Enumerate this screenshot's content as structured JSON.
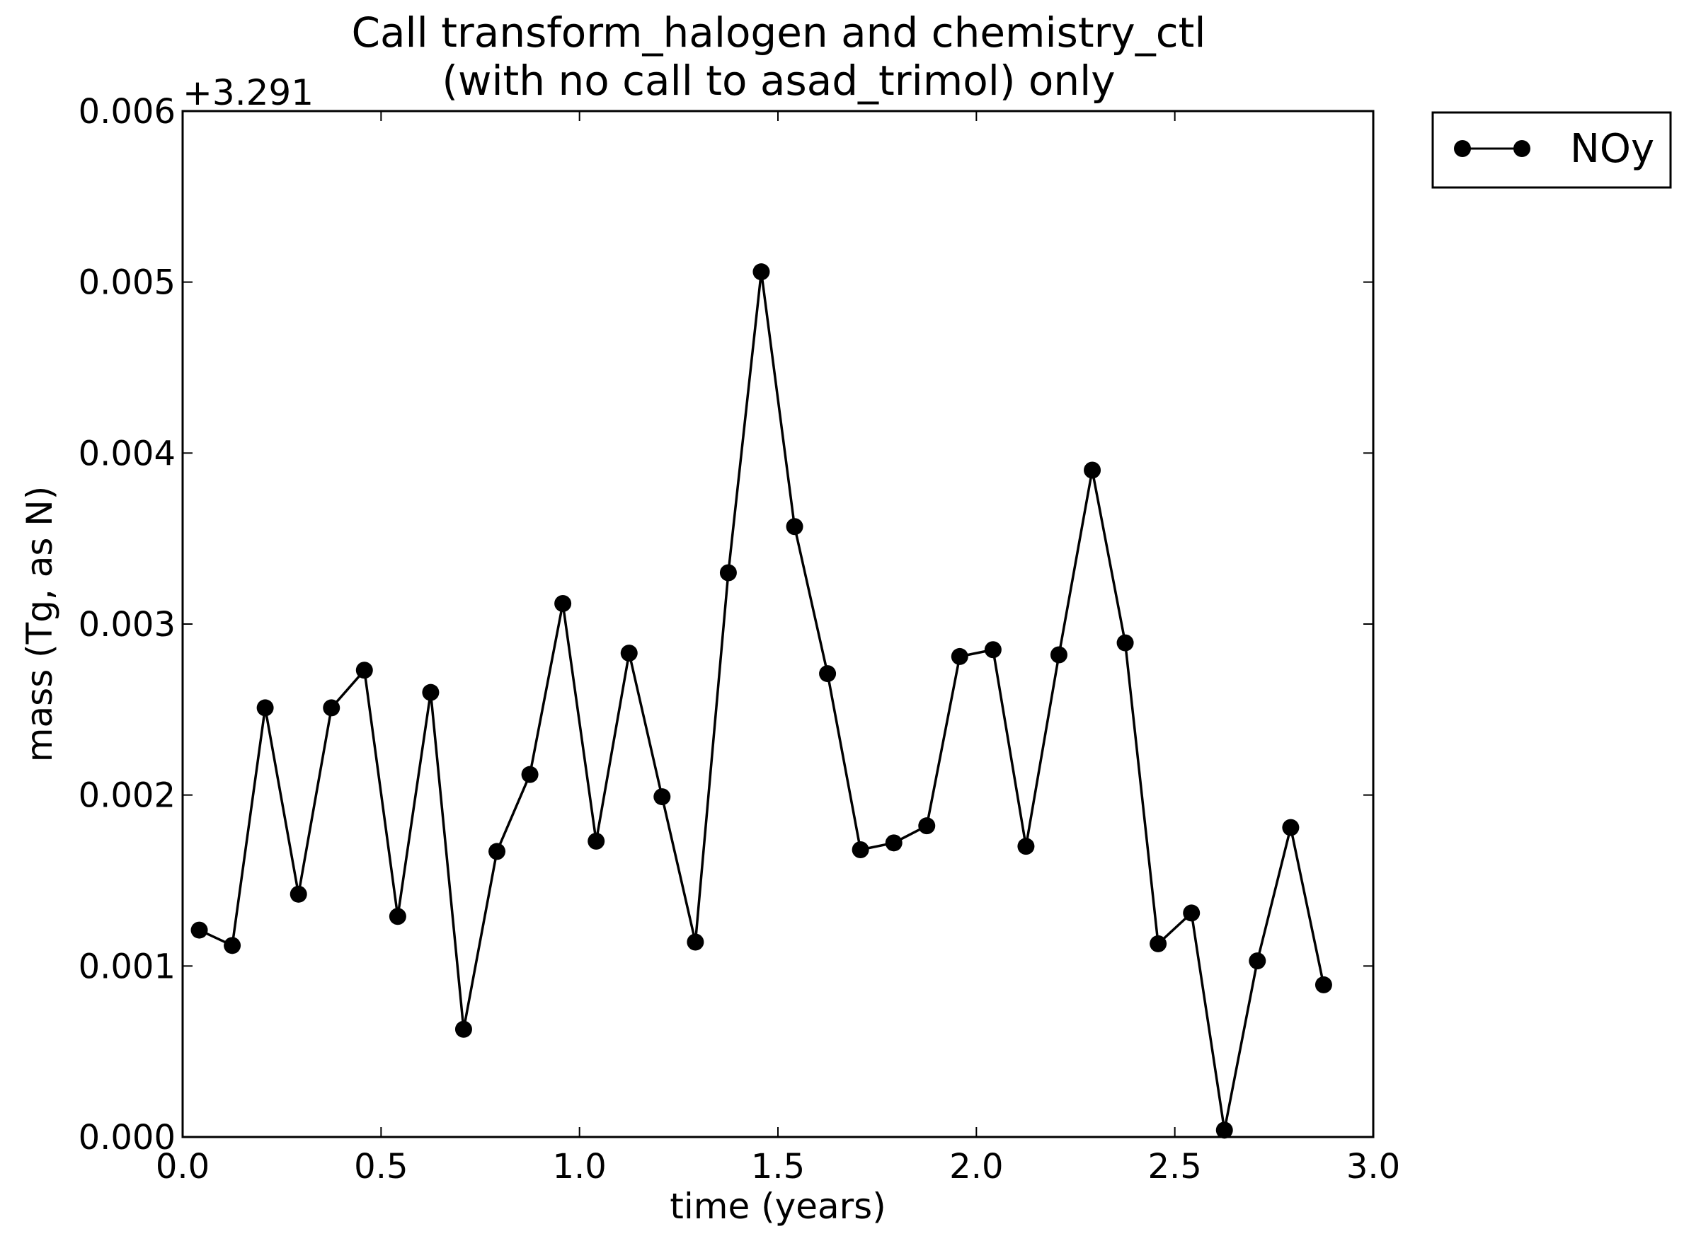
{
  "chart_data": {
    "type": "line",
    "title_line1": "Call transform_halogen and chemistry_ctl",
    "title_line2": "(with no call to asad_trimol) only",
    "xlabel": "time (years)",
    "ylabel": "mass (Tg, as N)",
    "y_offset_label": "+3.291",
    "xlim": [
      0.0,
      3.0
    ],
    "ylim": [
      0.0,
      0.006
    ],
    "x_ticks": [
      "0.0",
      "0.5",
      "1.0",
      "1.5",
      "2.0",
      "2.5",
      "3.0"
    ],
    "y_ticks": [
      "0.000",
      "0.001",
      "0.002",
      "0.003",
      "0.004",
      "0.005",
      "0.006"
    ],
    "grid": false,
    "legend_position": "outside-top-right",
    "series": [
      {
        "name": "NOy",
        "color": "#000000",
        "marker": "circle",
        "x": [
          0.042,
          0.125,
          0.208,
          0.292,
          0.375,
          0.458,
          0.542,
          0.625,
          0.708,
          0.792,
          0.875,
          0.958,
          1.042,
          1.125,
          1.208,
          1.292,
          1.375,
          1.458,
          1.542,
          1.625,
          1.708,
          1.792,
          1.875,
          1.958,
          2.042,
          2.125,
          2.208,
          2.292,
          2.375,
          2.458,
          2.542,
          2.625,
          2.708,
          2.792,
          2.875
        ],
        "y": [
          0.00121,
          0.00112,
          0.00251,
          0.00142,
          0.00251,
          0.00273,
          0.00129,
          0.0026,
          0.00063,
          0.00167,
          0.00212,
          0.00312,
          0.00173,
          0.00283,
          0.00199,
          0.00114,
          0.0033,
          0.00506,
          0.00357,
          0.00271,
          0.00168,
          0.00172,
          0.00182,
          0.00281,
          0.00285,
          0.0017,
          0.00282,
          0.0039,
          0.00289,
          0.00113,
          0.00131,
          4e-05,
          0.00103,
          0.00181,
          0.00089
        ]
      }
    ]
  }
}
